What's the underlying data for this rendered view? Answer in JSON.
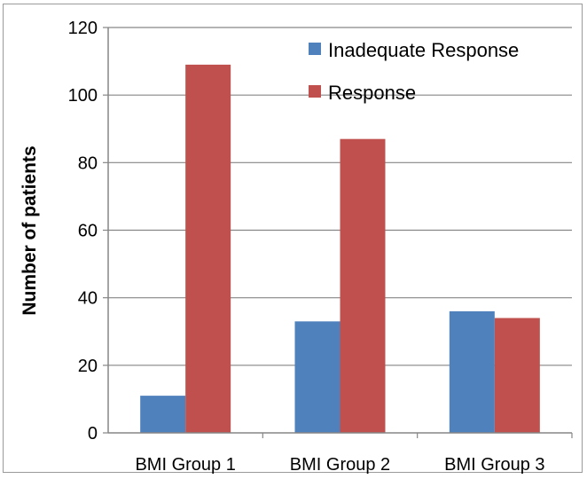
{
  "chart_data": {
    "type": "bar",
    "title": "",
    "xlabel": "",
    "ylabel": "Number of patients",
    "ylim": [
      0,
      120
    ],
    "yticks": [
      0,
      20,
      40,
      60,
      80,
      100,
      120
    ],
    "grid": true,
    "legend_position": "top-right",
    "categories": [
      "BMI Group 1",
      "BMI Group 2",
      "BMI Group 3"
    ],
    "series": [
      {
        "name": "Inadequate Response",
        "color": "#4F81BD",
        "values": [
          11,
          33,
          36
        ]
      },
      {
        "name": "Response",
        "color": "#C0504D",
        "values": [
          109,
          87,
          34
        ]
      }
    ]
  }
}
